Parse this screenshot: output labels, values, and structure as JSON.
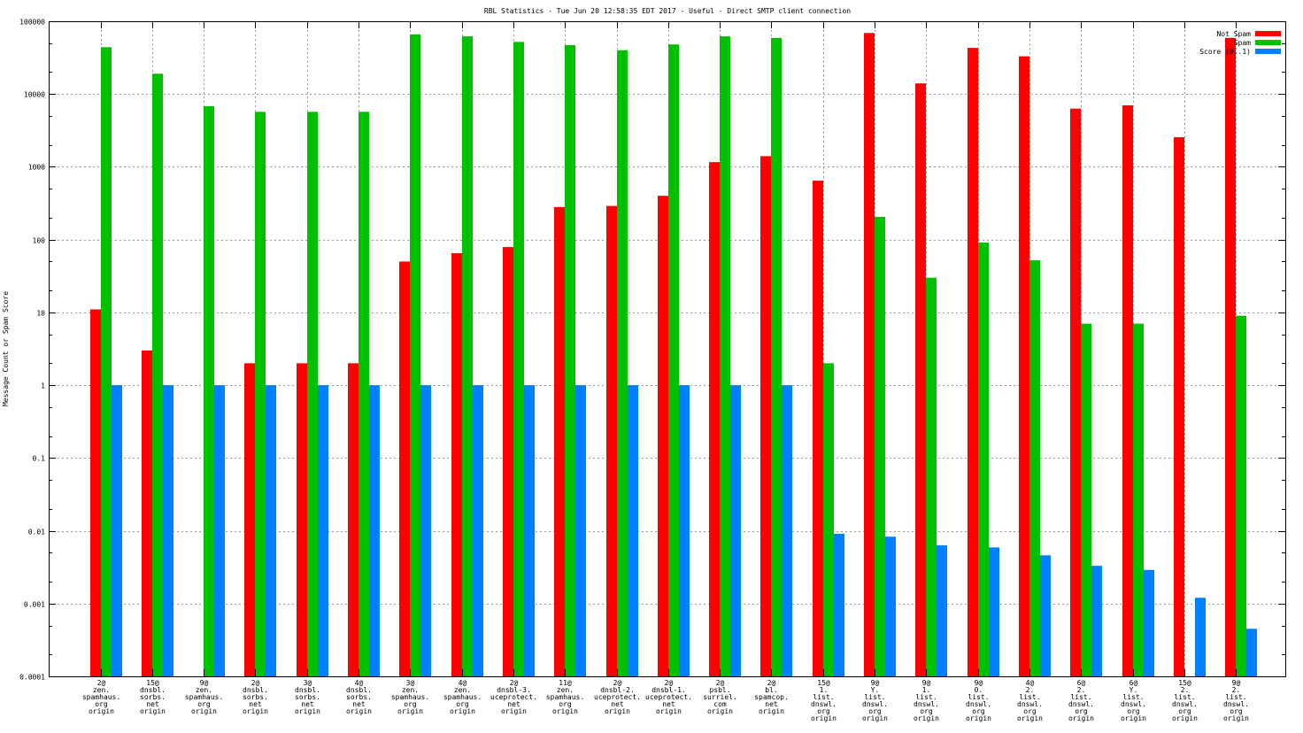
{
  "chart_data": {
    "type": "bar",
    "title": "RBL Statistics - Tue Jun 20 12:58:35 EDT 2017 - Useful - Direct SMTP client connection",
    "xlabel": "",
    "ylabel": "Message Count or Spam Score",
    "yscale": "log",
    "ylim": [
      0.0001,
      100000
    ],
    "yticks": [
      "0.0001",
      "0.001",
      "0.01",
      "0.1",
      "1",
      "10",
      "100",
      "1000",
      "10000",
      "100000"
    ],
    "grid": true,
    "legend_position": "top-right",
    "categories": [
      [
        "2@",
        "zen.",
        "spamhaus.",
        "org",
        "origin"
      ],
      [
        "15@",
        "dnsbl.",
        "sorbs.",
        "net",
        "origin"
      ],
      [
        "9@",
        "zen.",
        "spamhaus.",
        "org",
        "origin"
      ],
      [
        "2@",
        "dnsbl.",
        "sorbs.",
        "net",
        "origin"
      ],
      [
        "3@",
        "dnsbl.",
        "sorbs.",
        "net",
        "origin"
      ],
      [
        "4@",
        "dnsbl.",
        "sorbs.",
        "net",
        "origin"
      ],
      [
        "3@",
        "zen.",
        "spamhaus.",
        "org",
        "origin"
      ],
      [
        "4@",
        "zen.",
        "spamhaus.",
        "org",
        "origin"
      ],
      [
        "2@",
        "dnsbl-3.",
        "uceprotect.",
        "net",
        "origin"
      ],
      [
        "11@",
        "zen.",
        "spamhaus.",
        "org",
        "origin"
      ],
      [
        "2@",
        "dnsbl-2.",
        "uceprotect.",
        "net",
        "origin"
      ],
      [
        "2@",
        "dnsbl-1.",
        "uceprotect.",
        "net",
        "origin"
      ],
      [
        "2@",
        "psbl.",
        "surriel.",
        "com",
        "origin"
      ],
      [
        "2@",
        "bl.",
        "spamcop.",
        "net",
        "origin"
      ],
      [
        "15@",
        "1.",
        "list.",
        "dnswl.",
        "org",
        "origin"
      ],
      [
        "9@",
        "Y.",
        "list.",
        "dnswl.",
        "org",
        "origin"
      ],
      [
        "9@",
        "1.",
        "list.",
        "dnswl.",
        "org",
        "origin"
      ],
      [
        "9@",
        "0.",
        "list.",
        "dnswl.",
        "org",
        "origin"
      ],
      [
        "4@",
        "2.",
        "list.",
        "dnswl.",
        "org",
        "origin"
      ],
      [
        "6@",
        "2.",
        "list.",
        "dnswl.",
        "org",
        "origin"
      ],
      [
        "6@",
        "Y.",
        "list.",
        "dnswl.",
        "org",
        "origin"
      ],
      [
        "15@",
        "2.",
        "list.",
        "dnswl.",
        "org",
        "origin"
      ],
      [
        "9@",
        "2.",
        "list.",
        "dnswl.",
        "org",
        "origin"
      ]
    ],
    "series": [
      {
        "name": "Not Spam",
        "color": "#ff0000",
        "values": [
          11,
          3,
          0,
          2,
          2,
          2,
          50,
          65,
          79,
          280,
          290,
          400,
          1160,
          1400,
          645,
          69000,
          14000,
          43000,
          33000,
          6300,
          7000,
          2550,
          59000
        ]
      },
      {
        "name": "Spam",
        "color": "#00c000",
        "values": [
          44000,
          19000,
          6800,
          5700,
          5700,
          5700,
          66000,
          62000,
          52000,
          47000,
          40000,
          48000,
          62000,
          59000,
          2,
          205,
          30,
          91,
          52,
          7,
          7,
          0,
          9
        ]
      },
      {
        "name": "Score (0..1)",
        "color": "#0080ff",
        "values": [
          1,
          1,
          1,
          1,
          1,
          1,
          1,
          1,
          1,
          1,
          1,
          1,
          1,
          1,
          0.0091,
          0.0083,
          0.0063,
          0.0059,
          0.0046,
          0.0033,
          0.0029,
          0.0012,
          0.00045
        ]
      }
    ]
  }
}
